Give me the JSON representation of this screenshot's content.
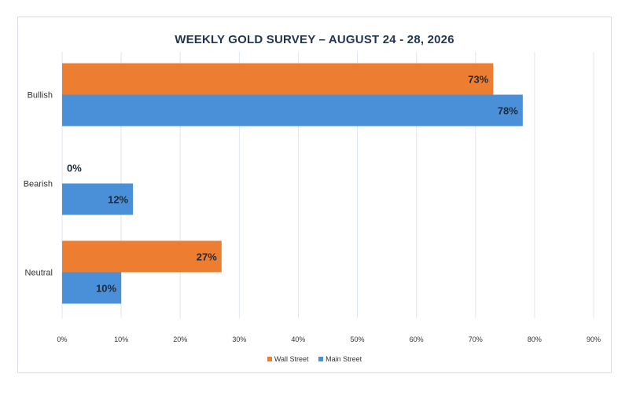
{
  "chart_data": {
    "type": "bar",
    "orientation": "horizontal",
    "title": "WEEKLY GOLD SURVEY – AUGUST 24 - 28, 2026",
    "categories": [
      "Bullish",
      "Bearish",
      "Neutral"
    ],
    "series": [
      {
        "name": "Wall Street",
        "values": [
          73,
          0,
          27
        ],
        "color": "#ed7d31"
      },
      {
        "name": "Main Street",
        "values": [
          78,
          12,
          10
        ],
        "color": "#4a90d9"
      }
    ],
    "data_labels": [
      [
        "73%",
        "0%",
        "27%"
      ],
      [
        "78%",
        "12%",
        "10%"
      ]
    ],
    "xlim": [
      0,
      90
    ],
    "x_ticks": [
      "0%",
      "10%",
      "20%",
      "30%",
      "40%",
      "50%",
      "60%",
      "70%",
      "80%",
      "90%"
    ],
    "xlabel": "",
    "ylabel": "",
    "grid": "vertical",
    "legend_position": "bottom"
  }
}
